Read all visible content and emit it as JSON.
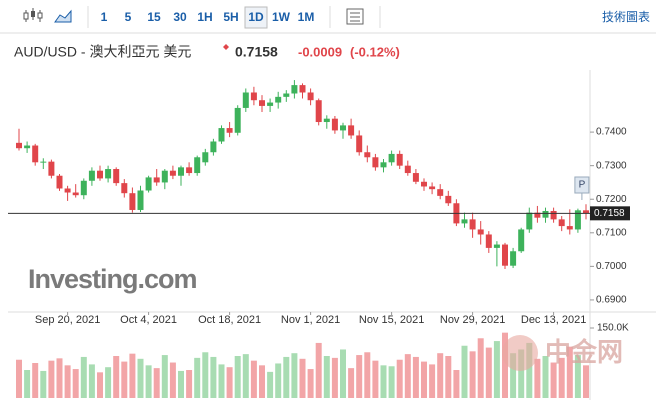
{
  "toolbar": {
    "intervals": [
      "1",
      "5",
      "15",
      "30",
      "1H",
      "5H",
      "1D",
      "1W",
      "1M"
    ],
    "selected": "1D",
    "right_link": "技術圖表"
  },
  "header": {
    "title": "AUD/USD - 澳大利亞元 美元",
    "price": "0.7158",
    "change": "-0.0009",
    "change_percent": "(-0.12%)"
  },
  "watermarks": [
    "Investing.com",
    "中金网"
  ],
  "chart_data": {
    "type": "candlestick",
    "x": [
      "2021-09-10",
      "2021-09-13",
      "2021-09-14",
      "2021-09-15",
      "2021-09-16",
      "2021-09-17",
      "2021-09-20",
      "2021-09-21",
      "2021-09-22",
      "2021-09-23",
      "2021-09-24",
      "2021-09-27",
      "2021-09-28",
      "2021-09-29",
      "2021-09-30",
      "2021-10-01",
      "2021-10-04",
      "2021-10-05",
      "2021-10-06",
      "2021-10-07",
      "2021-10-08",
      "2021-10-11",
      "2021-10-12",
      "2021-10-13",
      "2021-10-14",
      "2021-10-15",
      "2021-10-18",
      "2021-10-19",
      "2021-10-20",
      "2021-10-21",
      "2021-10-22",
      "2021-10-25",
      "2021-10-26",
      "2021-10-27",
      "2021-10-28",
      "2021-10-29",
      "2021-11-01",
      "2021-11-02",
      "2021-11-03",
      "2021-11-04",
      "2021-11-05",
      "2021-11-08",
      "2021-11-09",
      "2021-11-10",
      "2021-11-11",
      "2021-11-12",
      "2021-11-15",
      "2021-11-16",
      "2021-11-17",
      "2021-11-18",
      "2021-11-19",
      "2021-11-22",
      "2021-11-23",
      "2021-11-24",
      "2021-11-25",
      "2021-11-26",
      "2021-11-29",
      "2021-11-30",
      "2021-12-01",
      "2021-12-02",
      "2021-12-03",
      "2021-12-06",
      "2021-12-07",
      "2021-12-08",
      "2021-12-09",
      "2021-12-10",
      "2021-12-13",
      "2021-12-14",
      "2021-12-15",
      "2021-12-16",
      "2021-12-17"
    ],
    "open": [
      0.7368,
      0.7352,
      0.736,
      0.731,
      0.7312,
      0.727,
      0.7232,
      0.722,
      0.7212,
      0.7255,
      0.7285,
      0.7262,
      0.729,
      0.7248,
      0.7218,
      0.7168,
      0.7226,
      0.7265,
      0.725,
      0.7285,
      0.727,
      0.7295,
      0.7278,
      0.731,
      0.734,
      0.7372,
      0.7412,
      0.7398,
      0.7472,
      0.7518,
      0.7495,
      0.7478,
      0.7488,
      0.7505,
      0.7515,
      0.754,
      0.7518,
      0.7495,
      0.743,
      0.744,
      0.7405,
      0.742,
      0.739,
      0.734,
      0.7325,
      0.7295,
      0.731,
      0.7335,
      0.73,
      0.7278,
      0.7252,
      0.7238,
      0.723,
      0.721,
      0.7188,
      0.7128,
      0.714,
      0.711,
      0.7095,
      0.7055,
      0.7065,
      0.7002,
      0.7045,
      0.711,
      0.716,
      0.7145,
      0.7165,
      0.714,
      0.712,
      0.711,
      0.7167
    ],
    "high": [
      0.741,
      0.7372,
      0.7365,
      0.7322,
      0.7318,
      0.7275,
      0.724,
      0.7245,
      0.7262,
      0.7295,
      0.73,
      0.73,
      0.7295,
      0.726,
      0.7235,
      0.724,
      0.727,
      0.729,
      0.729,
      0.73,
      0.73,
      0.731,
      0.733,
      0.735,
      0.738,
      0.742,
      0.743,
      0.748,
      0.753,
      0.7535,
      0.751,
      0.75,
      0.752,
      0.7525,
      0.7555,
      0.7545,
      0.753,
      0.75,
      0.745,
      0.7448,
      0.7428,
      0.744,
      0.7405,
      0.736,
      0.7335,
      0.732,
      0.7345,
      0.7345,
      0.7315,
      0.729,
      0.7262,
      0.725,
      0.7245,
      0.7225,
      0.72,
      0.716,
      0.716,
      0.7135,
      0.7105,
      0.7075,
      0.707,
      0.7055,
      0.7115,
      0.7175,
      0.718,
      0.7175,
      0.7175,
      0.715,
      0.717,
      0.7172,
      0.7185
    ],
    "low": [
      0.7345,
      0.7338,
      0.73,
      0.729,
      0.7262,
      0.7225,
      0.7195,
      0.7205,
      0.72,
      0.724,
      0.7255,
      0.725,
      0.724,
      0.7205,
      0.716,
      0.7162,
      0.722,
      0.724,
      0.723,
      0.726,
      0.724,
      0.727,
      0.727,
      0.73,
      0.733,
      0.7365,
      0.7385,
      0.739,
      0.746,
      0.748,
      0.746,
      0.746,
      0.747,
      0.749,
      0.75,
      0.75,
      0.748,
      0.742,
      0.741,
      0.7395,
      0.738,
      0.738,
      0.733,
      0.731,
      0.7285,
      0.728,
      0.73,
      0.729,
      0.727,
      0.7245,
      0.7225,
      0.7215,
      0.72,
      0.718,
      0.712,
      0.7115,
      0.7085,
      0.7065,
      0.704,
      0.7,
      0.6992,
      0.6995,
      0.704,
      0.71,
      0.713,
      0.713,
      0.713,
      0.7105,
      0.7095,
      0.71,
      0.714
    ],
    "close": [
      0.7352,
      0.736,
      0.731,
      0.7312,
      0.727,
      0.7232,
      0.722,
      0.7212,
      0.7255,
      0.7285,
      0.7262,
      0.729,
      0.7248,
      0.7218,
      0.7168,
      0.7226,
      0.7265,
      0.725,
      0.7285,
      0.727,
      0.7295,
      0.7278,
      0.7325,
      0.734,
      0.7372,
      0.7412,
      0.7398,
      0.7472,
      0.7518,
      0.7495,
      0.7478,
      0.7488,
      0.7505,
      0.7515,
      0.754,
      0.7518,
      0.7495,
      0.743,
      0.744,
      0.7405,
      0.742,
      0.739,
      0.734,
      0.7325,
      0.7295,
      0.731,
      0.7335,
      0.73,
      0.7278,
      0.7252,
      0.7238,
      0.723,
      0.721,
      0.7188,
      0.7128,
      0.714,
      0.711,
      0.7095,
      0.7055,
      0.7065,
      0.7002,
      0.7045,
      0.711,
      0.716,
      0.7145,
      0.7165,
      0.714,
      0.712,
      0.711,
      0.7167,
      0.7158
    ],
    "volume": [
      82000,
      60000,
      75000,
      58000,
      80000,
      85000,
      70000,
      62000,
      88000,
      72000,
      55000,
      66000,
      90000,
      78000,
      95000,
      84000,
      70000,
      64000,
      92000,
      76000,
      58000,
      60000,
      86000,
      98000,
      88000,
      72000,
      66000,
      90000,
      94000,
      80000,
      70000,
      56000,
      74000,
      88000,
      96000,
      84000,
      62000,
      118000,
      90000,
      86000,
      104000,
      64000,
      92000,
      98000,
      80000,
      70000,
      68000,
      82000,
      94000,
      88000,
      78000,
      72000,
      96000,
      90000,
      60000,
      112000,
      100000,
      128000,
      108000,
      122000,
      140000,
      96000,
      104000,
      118000,
      84000,
      90000,
      76000,
      86000,
      110000,
      92000,
      70000
    ],
    "xticks": [
      {
        "value": "2021-09-20",
        "label": "Sep 20, 2021"
      },
      {
        "value": "2021-10-04",
        "label": "Oct 4, 2021"
      },
      {
        "value": "2021-10-18",
        "label": "Oct 18, 2021"
      },
      {
        "value": "2021-11-01",
        "label": "Nov 1, 2021"
      },
      {
        "value": "2021-11-15",
        "label": "Nov 15, 2021"
      },
      {
        "value": "2021-11-29",
        "label": "Nov 29, 2021"
      },
      {
        "value": "2021-12-13",
        "label": "Dec 13, 2021"
      }
    ],
    "ylim": [
      0.687,
      0.7585
    ],
    "yticks": [
      {
        "value": 0.74,
        "label": "0.7400"
      },
      {
        "value": 0.73,
        "label": "0.7300"
      },
      {
        "value": 0.72,
        "label": "0.7200"
      },
      {
        "value": 0.71,
        "label": "0.7100"
      },
      {
        "value": 0.7,
        "label": "0.7000"
      },
      {
        "value": 0.69,
        "label": "0.6900"
      }
    ],
    "volume_ylim": [
      0,
      150000
    ],
    "volume_ticks": [
      {
        "value": 150000,
        "label": "150.0K"
      }
    ],
    "last_price": 0.7158,
    "marker_label": "P",
    "up_color": "#3db25b",
    "down_color": "#e0454a",
    "volume_up_color": "#a8dcb2",
    "volume_down_color": "#f2a5a7"
  }
}
